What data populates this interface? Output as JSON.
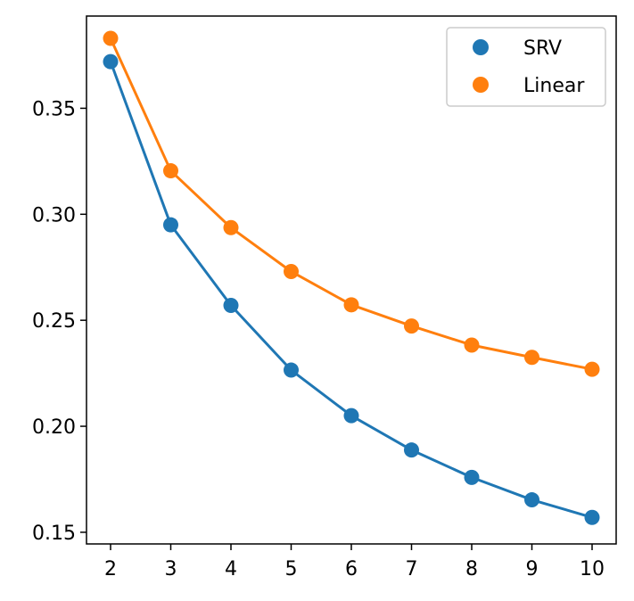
{
  "chart_data": {
    "type": "line",
    "title": "",
    "xlabel": "",
    "ylabel": "",
    "x": [
      2,
      3,
      4,
      5,
      6,
      7,
      8,
      9,
      10
    ],
    "xlim": [
      1.6,
      10.4
    ],
    "ylim": [
      0.1445,
      0.3935
    ],
    "xticks": [
      2,
      3,
      4,
      5,
      6,
      7,
      8,
      9,
      10
    ],
    "yticks": [
      0.15,
      0.2,
      0.25,
      0.3,
      0.35
    ],
    "xtick_labels": [
      "2",
      "3",
      "4",
      "5",
      "6",
      "7",
      "8",
      "9",
      "10"
    ],
    "ytick_labels": [
      "0.15",
      "0.20",
      "0.25",
      "0.30",
      "0.35"
    ],
    "grid": false,
    "legend_position": "top-right",
    "series": [
      {
        "name": "SRV",
        "color": "#1f77b4",
        "values": [
          0.372,
          0.295,
          0.257,
          0.2265,
          0.205,
          0.1888,
          0.1759,
          0.1653,
          0.157
        ]
      },
      {
        "name": "Linear",
        "color": "#ff7f0e",
        "values": [
          0.383,
          0.3205,
          0.2937,
          0.273,
          0.2573,
          0.2473,
          0.2383,
          0.2325,
          0.2269
        ]
      }
    ]
  }
}
